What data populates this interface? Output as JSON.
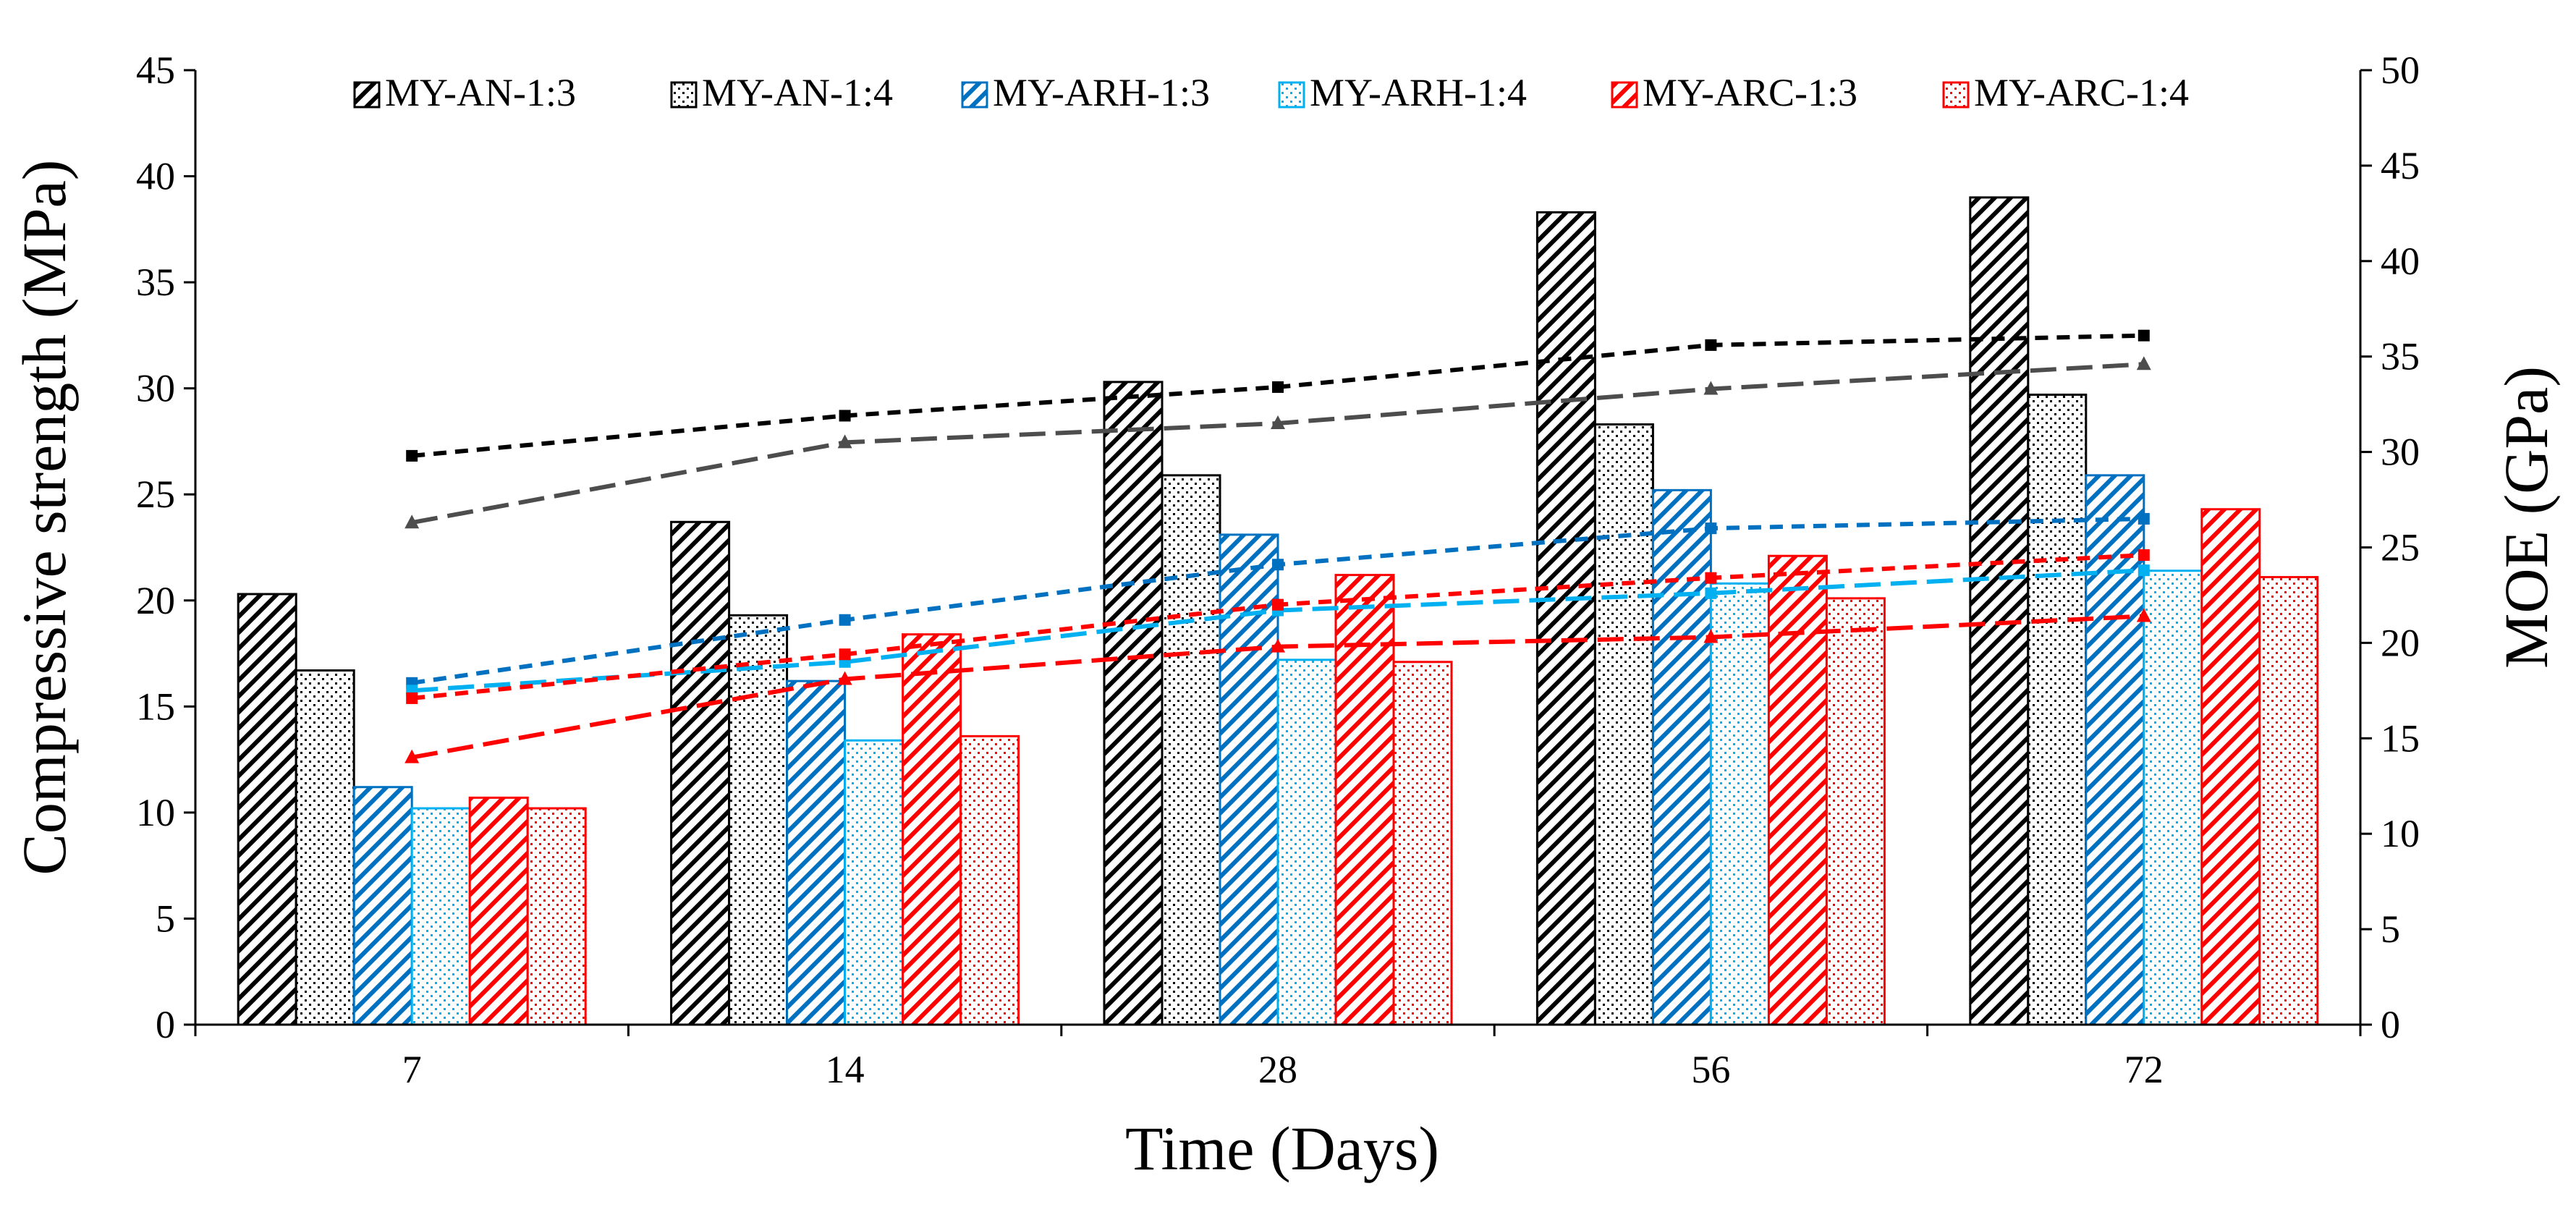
{
  "chart_data": {
    "type": "bar",
    "xlabel": "Time (Days)",
    "ylabel": "Compressive strength (MPa)",
    "y2label": "MOE (GPa)",
    "categories": [
      "7",
      "14",
      "28",
      "56",
      "72"
    ],
    "ylim": [
      0,
      45
    ],
    "yticks": [
      "0",
      "5",
      "10",
      "15",
      "20",
      "25",
      "30",
      "35",
      "40",
      "45"
    ],
    "y2lim": [
      0,
      50
    ],
    "y2ticks": [
      "0",
      "5",
      "10",
      "15",
      "20",
      "25",
      "30",
      "35",
      "40",
      "45",
      "50"
    ],
    "grid": false,
    "legend_position": "top",
    "series": [
      {
        "name": "MY-AN-1:3",
        "color": "#000000",
        "pattern": "hatch",
        "values": [
          20.3,
          23.7,
          30.3,
          38.3,
          39.0
        ]
      },
      {
        "name": "MY-AN-1:4",
        "color": "#000000",
        "pattern": "dots",
        "values": [
          16.7,
          19.3,
          25.9,
          28.3,
          29.7
        ]
      },
      {
        "name": "MY-ARH-1:3",
        "color": "#0070C0",
        "pattern": "hatch",
        "values": [
          11.2,
          16.2,
          23.1,
          25.2,
          25.9
        ]
      },
      {
        "name": "MY-ARH-1:4",
        "color": "#00B0F0",
        "pattern": "dots",
        "values": [
          10.2,
          13.4,
          17.2,
          20.8,
          21.4
        ]
      },
      {
        "name": "MY-ARC-1:3",
        "color": "#FF0000",
        "pattern": "hatch",
        "values": [
          10.7,
          18.4,
          21.2,
          22.1,
          24.3
        ]
      },
      {
        "name": "MY-ARC-1:4",
        "color": "#FF0000",
        "pattern": "dots",
        "values": [
          10.2,
          13.6,
          17.1,
          20.1,
          21.1
        ]
      }
    ],
    "moe_lines": [
      {
        "color": "#000000",
        "marker": "square",
        "dash": "short",
        "values": [
          29.8,
          31.9,
          33.4,
          35.6,
          36.1
        ]
      },
      {
        "color": "#4D4D4D",
        "marker": "triangle",
        "dash": "long",
        "values": [
          26.3,
          30.5,
          31.5,
          33.3,
          34.6
        ]
      },
      {
        "color": "#0070C0",
        "marker": "square",
        "dash": "short",
        "values": [
          17.9,
          21.2,
          24.1,
          26.0,
          26.5
        ]
      },
      {
        "color": "#00B0F0",
        "marker": "square",
        "dash": "long",
        "values": [
          17.5,
          19.0,
          21.7,
          22.6,
          23.8
        ]
      },
      {
        "color": "#FF0000",
        "marker": "square",
        "dash": "short",
        "values": [
          17.1,
          19.4,
          22.0,
          23.4,
          24.6
        ]
      },
      {
        "color": "#FF0000",
        "marker": "triangle",
        "dash": "long",
        "values": [
          14.0,
          18.1,
          19.8,
          20.3,
          21.4
        ]
      }
    ]
  }
}
